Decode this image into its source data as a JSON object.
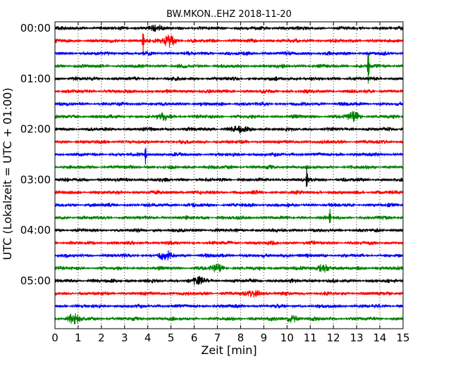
{
  "chart_data": {
    "type": "line",
    "title": "BW.MKON..EHZ 2018-11-20",
    "xlabel": "Zeit  [min]",
    "ylabel": "UTC (Lokalzeit = UTC + 01:00)",
    "xlim": [
      0,
      15
    ],
    "x_ticks": [
      "0",
      "1",
      "2",
      "3",
      "4",
      "5",
      "6",
      "7",
      "8",
      "9",
      "10",
      "11",
      "12",
      "13",
      "14",
      "15"
    ],
    "y_tick_labels": [
      "00:00",
      "01:00",
      "02:00",
      "03:00",
      "04:00",
      "05:00"
    ],
    "grid": "vertical-dotted",
    "trace_colors": [
      "#000000",
      "#ff0000",
      "#0000ff",
      "#008000"
    ],
    "traces": [
      {
        "start": "00:00",
        "color": "#000000",
        "events": [
          {
            "t": 4.3,
            "amp": 0.25
          }
        ]
      },
      {
        "start": "00:15",
        "color": "#ff0000",
        "events": [
          {
            "t": 3.8,
            "amp": 1.4
          },
          {
            "t": 4.9,
            "amp": 0.6
          }
        ]
      },
      {
        "start": "00:30",
        "color": "#0000ff",
        "events": []
      },
      {
        "start": "00:45",
        "color": "#008000",
        "events": [
          {
            "t": 13.5,
            "amp": 2.0
          }
        ]
      },
      {
        "start": "01:00",
        "color": "#000000",
        "events": []
      },
      {
        "start": "01:15",
        "color": "#ff0000",
        "events": []
      },
      {
        "start": "01:30",
        "color": "#0000ff",
        "events": []
      },
      {
        "start": "01:45",
        "color": "#008000",
        "events": [
          {
            "t": 4.7,
            "amp": 0.35
          },
          {
            "t": 12.9,
            "amp": 0.4
          }
        ]
      },
      {
        "start": "02:00",
        "color": "#000000",
        "events": [
          {
            "t": 7.9,
            "amp": 0.3
          }
        ]
      },
      {
        "start": "02:15",
        "color": "#ff0000",
        "events": []
      },
      {
        "start": "02:30",
        "color": "#0000ff",
        "events": [
          {
            "t": 3.9,
            "amp": 1.1
          }
        ]
      },
      {
        "start": "02:45",
        "color": "#008000",
        "events": []
      },
      {
        "start": "03:00",
        "color": "#000000",
        "events": [
          {
            "t": 10.85,
            "amp": 1.3
          }
        ]
      },
      {
        "start": "03:15",
        "color": "#ff0000",
        "events": []
      },
      {
        "start": "03:30",
        "color": "#0000ff",
        "events": []
      },
      {
        "start": "03:45",
        "color": "#008000",
        "events": [
          {
            "t": 11.85,
            "amp": 1.0
          }
        ]
      },
      {
        "start": "04:00",
        "color": "#000000",
        "events": []
      },
      {
        "start": "04:15",
        "color": "#ff0000",
        "events": []
      },
      {
        "start": "04:30",
        "color": "#0000ff",
        "events": [
          {
            "t": 4.8,
            "amp": 0.35
          }
        ]
      },
      {
        "start": "04:45",
        "color": "#008000",
        "events": [
          {
            "t": 11.6,
            "amp": 0.4
          },
          {
            "t": 7.0,
            "amp": 0.3
          }
        ]
      },
      {
        "start": "05:00",
        "color": "#000000",
        "events": [
          {
            "t": 6.2,
            "amp": 0.35
          }
        ]
      },
      {
        "start": "05:15",
        "color": "#ff0000",
        "events": [
          {
            "t": 8.6,
            "amp": 0.35
          }
        ]
      },
      {
        "start": "05:30",
        "color": "#0000ff",
        "events": []
      },
      {
        "start": "05:45",
        "color": "#008000",
        "events": [
          {
            "t": 0.8,
            "amp": 0.4
          },
          {
            "t": 10.2,
            "amp": 0.3
          }
        ]
      }
    ]
  }
}
